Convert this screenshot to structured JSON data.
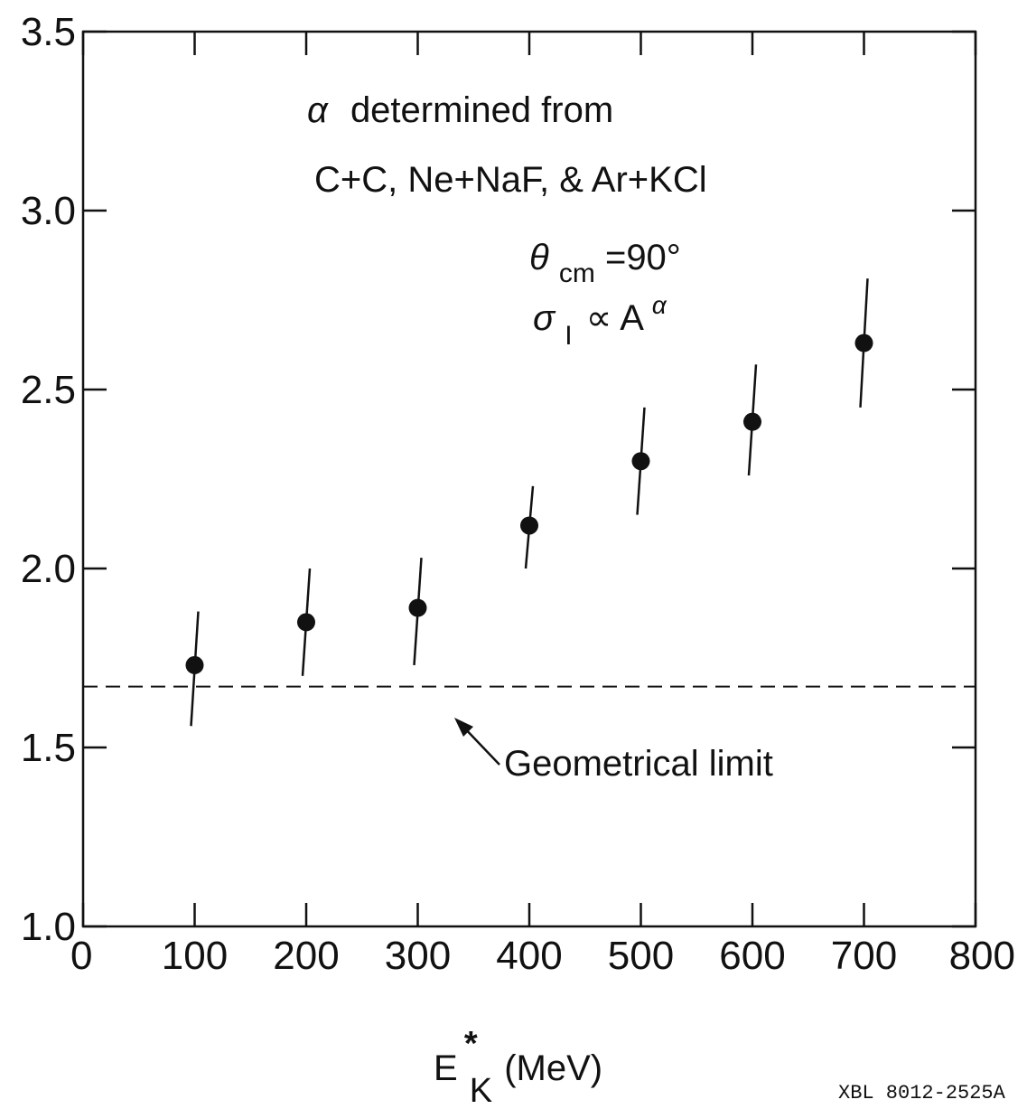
{
  "chart_data": {
    "type": "scatter",
    "x": [
      100,
      200,
      300,
      400,
      500,
      600,
      700
    ],
    "y": [
      1.73,
      1.85,
      1.89,
      2.12,
      2.3,
      2.41,
      2.63
    ],
    "y_err_low": [
      1.56,
      1.7,
      1.73,
      2.0,
      2.15,
      2.26,
      2.45
    ],
    "y_err_high": [
      1.88,
      2.0,
      2.03,
      2.23,
      2.45,
      2.57,
      2.81
    ],
    "xlim": [
      0,
      800
    ],
    "ylim": [
      1.0,
      3.5
    ],
    "x_ticks": [
      0,
      100,
      200,
      300,
      400,
      500,
      600,
      700,
      800
    ],
    "x_tick_labels": [
      "0",
      "100",
      "200",
      "300",
      "400",
      "500",
      "600",
      "700",
      "800"
    ],
    "y_ticks": [
      1.0,
      1.5,
      2.0,
      2.5,
      3.0,
      3.5
    ],
    "y_tick_labels": [
      "1.0",
      "1.5",
      "2.0",
      "2.5",
      "3.0",
      "3.5"
    ],
    "grid": false,
    "xlabel": {
      "main": "E",
      "superscript": "*",
      "subscript": "K",
      "unit": "(MeV)"
    },
    "reference_line": {
      "y": 1.67,
      "style": "dashed",
      "label": "Geometrical limit"
    },
    "annotations": {
      "line1_symbol": "α",
      "line1_text": "determined from",
      "line2": "C+C, Ne+NaF, & Ar+KCl",
      "theta_symbol": "θ",
      "theta_sub": "cm",
      "theta_value": "=90°",
      "sigma_symbol": "σ",
      "sigma_sub": "I",
      "sigma_rel": "∝ A",
      "sigma_sup": "α"
    },
    "identifier": "XBL 8012-2525A"
  },
  "colors": {
    "ink": "#111111",
    "background": "#ffffff"
  }
}
